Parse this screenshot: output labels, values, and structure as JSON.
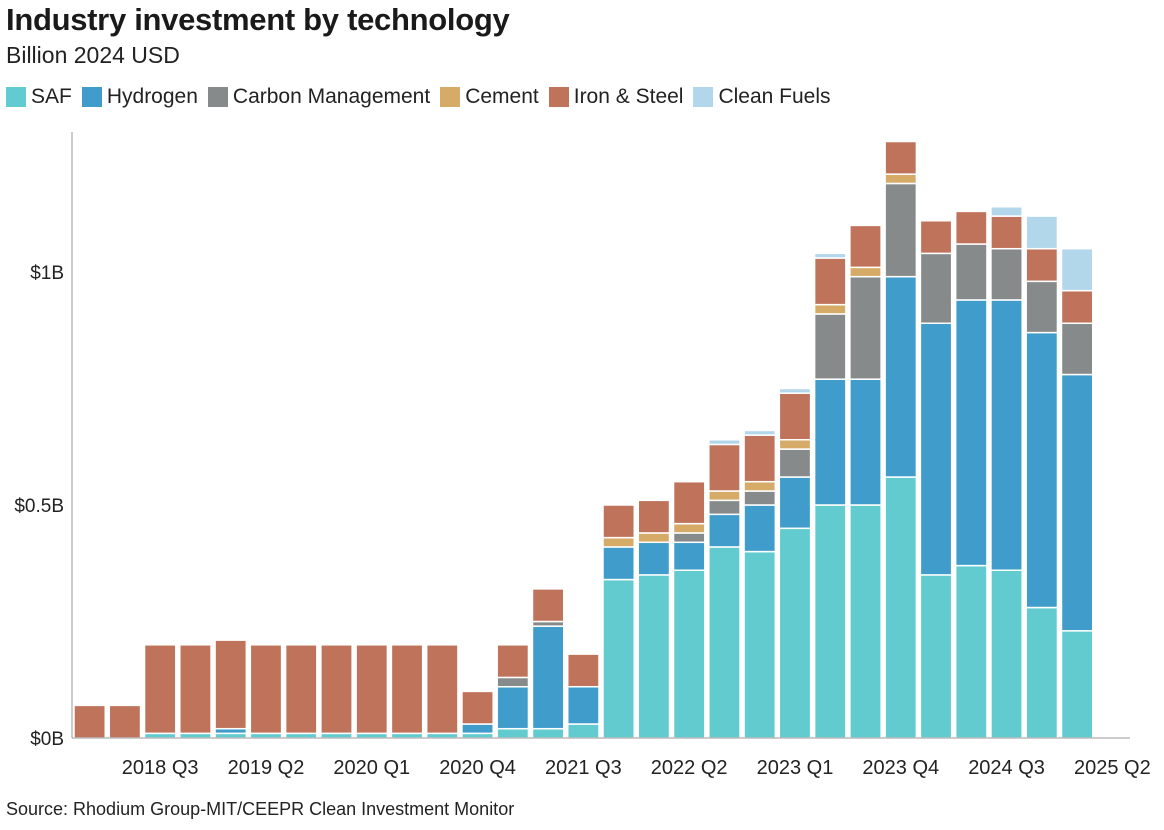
{
  "header": {
    "title": "Industry investment by technology",
    "subtitle": "Billion 2024 USD"
  },
  "source": "Source: Rhodium Group-MIT/CEEPR Clean Investment Monitor",
  "chart_data": {
    "type": "bar",
    "stacked": true,
    "title": "Industry investment by technology",
    "subtitle": "Billion 2024 USD",
    "ylim": [
      0,
      1.25
    ],
    "yticks": [
      {
        "value": 0,
        "label": "$0B"
      },
      {
        "value": 0.5,
        "label": "$0.5B"
      },
      {
        "value": 1.0,
        "label": "$1B"
      }
    ],
    "xtick_labels": [
      {
        "index": 2,
        "label": "2018 Q3"
      },
      {
        "index": 5,
        "label": "2019 Q2"
      },
      {
        "index": 8,
        "label": "2020 Q1"
      },
      {
        "index": 11,
        "label": "2020 Q4"
      },
      {
        "index": 14,
        "label": "2021 Q3"
      },
      {
        "index": 17,
        "label": "2022 Q2"
      },
      {
        "index": 20,
        "label": "2023 Q1"
      },
      {
        "index": 23,
        "label": "2023 Q4"
      },
      {
        "index": 26,
        "label": "2024 Q3"
      },
      {
        "index": 29,
        "label": "2025 Q2"
      }
    ],
    "categories": [
      "2018 Q1",
      "2018 Q2",
      "2018 Q3",
      "2018 Q4",
      "2019 Q1",
      "2019 Q2",
      "2019 Q3",
      "2019 Q4",
      "2020 Q1",
      "2020 Q2",
      "2020 Q3",
      "2020 Q4",
      "2021 Q1",
      "2021 Q2",
      "2021 Q3",
      "2021 Q4",
      "2022 Q1",
      "2022 Q2",
      "2022 Q3",
      "2022 Q4",
      "2023 Q1",
      "2023 Q2",
      "2023 Q3",
      "2023 Q4",
      "2024 Q1",
      "2024 Q2",
      "2024 Q3",
      "2024 Q4",
      "2025 Q1",
      "2025 Q2"
    ],
    "legend_position": "top-left",
    "series": [
      {
        "name": "SAF",
        "color": "#62cbd0",
        "values": [
          0,
          0,
          0.01,
          0.01,
          0.01,
          0.01,
          0.01,
          0.01,
          0.01,
          0.01,
          0.01,
          0.01,
          0.02,
          0.02,
          0.03,
          0.34,
          0.35,
          0.36,
          0.41,
          0.4,
          0.45,
          0.5,
          0.5,
          0.56,
          0.35,
          0.37,
          0.36,
          0.28,
          0.23,
          0
        ]
      },
      {
        "name": "Hydrogen",
        "color": "#3f9ccb",
        "values": [
          0,
          0,
          0,
          0,
          0.01,
          0,
          0,
          0,
          0,
          0,
          0,
          0.02,
          0.09,
          0.22,
          0.08,
          0.07,
          0.07,
          0.06,
          0.07,
          0.1,
          0.11,
          0.27,
          0.27,
          0.43,
          0.54,
          0.57,
          0.58,
          0.59,
          0.55,
          0
        ]
      },
      {
        "name": "Carbon Management",
        "color": "#878a8b",
        "values": [
          0,
          0,
          0,
          0,
          0,
          0,
          0,
          0,
          0,
          0,
          0,
          0,
          0.02,
          0.01,
          0,
          0,
          0,
          0.02,
          0.03,
          0.03,
          0.06,
          0.14,
          0.22,
          0.2,
          0.15,
          0.12,
          0.11,
          0.11,
          0.11,
          0
        ]
      },
      {
        "name": "Cement",
        "color": "#d6ab68",
        "values": [
          0,
          0,
          0,
          0,
          0,
          0,
          0,
          0,
          0,
          0,
          0,
          0,
          0,
          0,
          0,
          0.02,
          0.02,
          0.02,
          0.02,
          0.02,
          0.02,
          0.02,
          0.02,
          0.02,
          0,
          0,
          0,
          0,
          0,
          0
        ]
      },
      {
        "name": "Iron & Steel",
        "color": "#bf735b",
        "values": [
          0.07,
          0.07,
          0.19,
          0.19,
          0.19,
          0.19,
          0.19,
          0.19,
          0.19,
          0.19,
          0.19,
          0.07,
          0.07,
          0.07,
          0.07,
          0.07,
          0.07,
          0.09,
          0.1,
          0.1,
          0.1,
          0.1,
          0.09,
          0.07,
          0.07,
          0.07,
          0.07,
          0.07,
          0.07,
          0
        ]
      },
      {
        "name": "Clean Fuels",
        "color": "#b2d7eb",
        "values": [
          0,
          0,
          0,
          0,
          0,
          0,
          0,
          0,
          0,
          0,
          0,
          0,
          0,
          0,
          0,
          0,
          0,
          0,
          0.01,
          0.01,
          0.01,
          0.01,
          0,
          0,
          0,
          0,
          0.02,
          0.07,
          0.09,
          0
        ]
      }
    ]
  }
}
